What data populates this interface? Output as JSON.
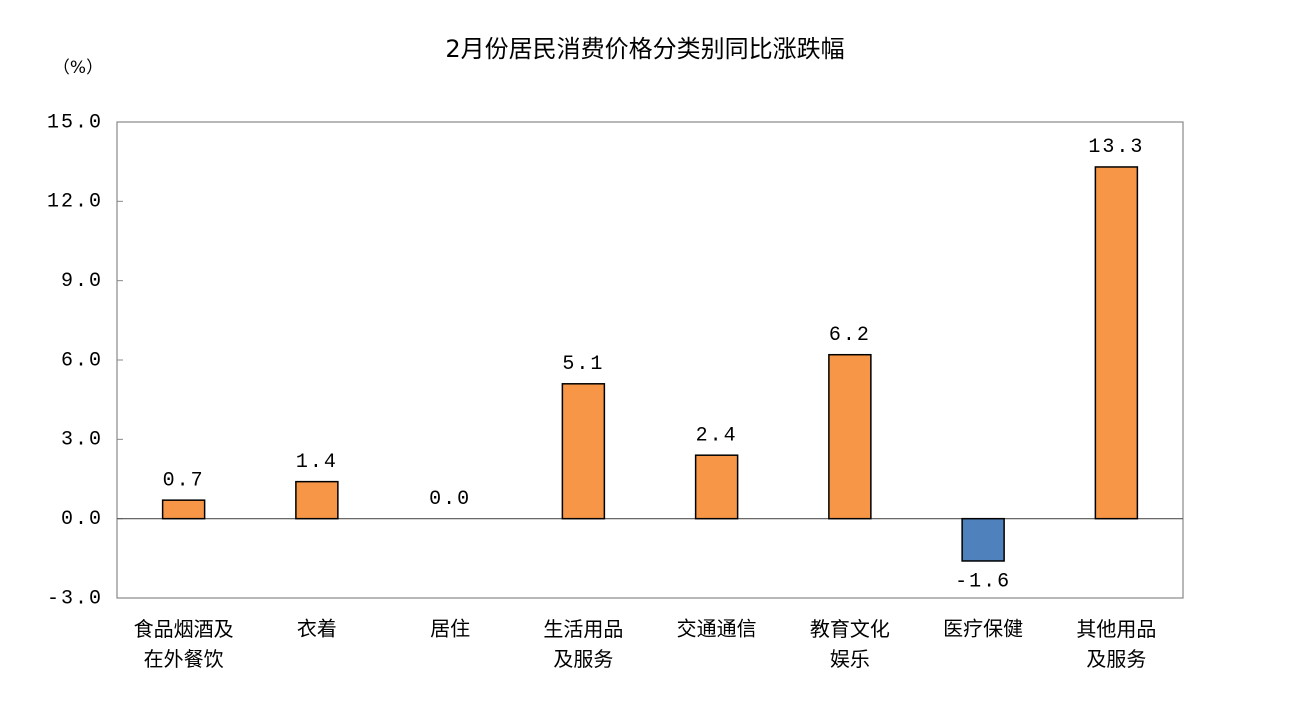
{
  "chart_data": {
    "type": "bar",
    "title": "2月份居民消费价格分类别同比涨跌幅",
    "y_label": "（%）",
    "categories": [
      "食品烟酒及\n在外餐饮",
      "衣着",
      "居住",
      "生活用品\n及服务",
      "交通通信",
      "教育文化\n娱乐",
      "医疗保健",
      "其他用品\n及服务"
    ],
    "values": [
      0.7,
      1.4,
      0,
      5.1,
      2.4,
      6.2,
      -1.6,
      13.3
    ],
    "value_labels": [
      "0.7",
      "1.4",
      "0.0",
      "5.1",
      "2.4",
      "6.2",
      "-1.6",
      "13.3"
    ],
    "colors": [
      "#f79646",
      "#f79646",
      "#f79646",
      "#f79646",
      "#f79646",
      "#f79646",
      "#4f81bd",
      "#f79646"
    ],
    "ylim": [
      -3,
      15
    ],
    "yticks": [
      {
        "value": -3,
        "label": "-3.0"
      },
      {
        "value": 0,
        "label": "0.0"
      },
      {
        "value": 3,
        "label": "3.0"
      },
      {
        "value": 6,
        "label": "6.0"
      },
      {
        "value": 9,
        "label": "9.0"
      },
      {
        "value": 12,
        "label": "12.0"
      },
      {
        "value": 15,
        "label": "15.0"
      }
    ],
    "grid": false
  }
}
